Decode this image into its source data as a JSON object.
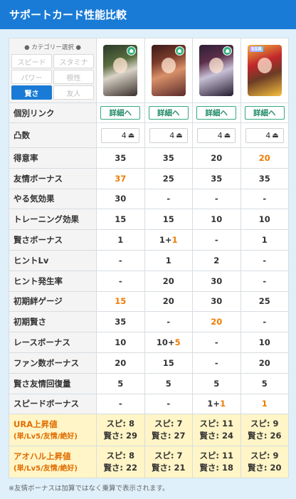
{
  "title": "サポートカード性能比較",
  "filter": {
    "title": "● カテゴリー選択 ●",
    "buttons": [
      {
        "label": "スピード",
        "active": false
      },
      {
        "label": "スタミナ",
        "active": false
      },
      {
        "label": "パワー",
        "active": false
      },
      {
        "label": "根性",
        "active": false
      },
      {
        "label": "賢さ",
        "active": true
      },
      {
        "label": "友人",
        "active": false
      }
    ]
  },
  "cards": [
    {
      "name": "card-1",
      "badge": "wis",
      "rarity": "",
      "caption": ""
    },
    {
      "name": "card-2",
      "badge": "wis",
      "rarity": "",
      "caption": ""
    },
    {
      "name": "card-3",
      "badge": "wis",
      "rarity": "",
      "caption": ""
    },
    {
      "name": "card-4",
      "badge": "",
      "rarity": "SSR",
      "caption": ""
    }
  ],
  "links": {
    "label": "個別リンク",
    "button": "詳細へ"
  },
  "limit": {
    "label": "凸数",
    "value": "4",
    "icon": "uncap-icon"
  },
  "rows": [
    {
      "label": "得意率",
      "vals": [
        [
          "35"
        ],
        [
          "35"
        ],
        [
          "20"
        ],
        [
          "20",
          "o"
        ]
      ]
    },
    {
      "label": "友情ボーナス",
      "vals": [
        [
          "37",
          "o"
        ],
        [
          "25"
        ],
        [
          "35"
        ],
        [
          "35"
        ]
      ]
    },
    {
      "label": "やる気効果",
      "vals": [
        [
          "30"
        ],
        [
          "-"
        ],
        [
          "-"
        ],
        [
          "-"
        ]
      ]
    },
    {
      "label": "トレーニング効果",
      "vals": [
        [
          "15"
        ],
        [
          "15"
        ],
        [
          "10"
        ],
        [
          "10"
        ]
      ]
    },
    {
      "label": "賢さボーナス",
      "vals": [
        [
          "1"
        ],
        [
          "1+",
          "",
          "1"
        ],
        [
          "-"
        ],
        [
          "1"
        ]
      ]
    },
    {
      "label": "ヒントLv",
      "vals": [
        [
          "-"
        ],
        [
          "1"
        ],
        [
          "2"
        ],
        [
          "-"
        ]
      ]
    },
    {
      "label": "ヒント発生率",
      "vals": [
        [
          "-"
        ],
        [
          "20"
        ],
        [
          "30"
        ],
        [
          "-"
        ]
      ]
    },
    {
      "label": "初期絆ゲージ",
      "vals": [
        [
          "15",
          "o"
        ],
        [
          "20"
        ],
        [
          "30"
        ],
        [
          "25"
        ]
      ]
    },
    {
      "label": "初期賢さ",
      "vals": [
        [
          "35"
        ],
        [
          "-"
        ],
        [
          "20",
          "o"
        ],
        [
          "-"
        ]
      ]
    },
    {
      "label": "レースボーナス",
      "vals": [
        [
          "10"
        ],
        [
          "10+",
          "",
          "5"
        ],
        [
          "-"
        ],
        [
          "10"
        ]
      ]
    },
    {
      "label": "ファン数ボーナス",
      "vals": [
        [
          "20"
        ],
        [
          "15"
        ],
        [
          "-"
        ],
        [
          "20"
        ]
      ]
    },
    {
      "label": "賢さ友情回復量",
      "vals": [
        [
          "5"
        ],
        [
          "5"
        ],
        [
          "5"
        ],
        [
          "5"
        ]
      ]
    },
    {
      "label": "スピードボーナス",
      "vals": [
        [
          "-"
        ],
        [
          "-"
        ],
        [
          "1+",
          "",
          "1"
        ],
        [
          "1",
          "o"
        ]
      ]
    }
  ],
  "ura": {
    "label": "URA上昇値",
    "sub": "(単/Lv5/友情/絶好)",
    "vals": [
      [
        "スピ: 8",
        "賢さ: 29"
      ],
      [
        "スピ: 7",
        "賢さ: 27"
      ],
      [
        "スピ: 11",
        "賢さ: 24"
      ],
      [
        "スピ: 9",
        "賢さ: 26"
      ]
    ]
  },
  "aoharu": {
    "label": "アオハル上昇値",
    "sub": "(単/Lv5/友情/絶好)",
    "vals": [
      [
        "スピ: 8",
        "賢さ: 22"
      ],
      [
        "スピ: 7",
        "賢さ: 21"
      ],
      [
        "スピ: 11",
        "賢さ: 18"
      ],
      [
        "スピ: 9",
        "賢さ: 20"
      ]
    ]
  },
  "footnote": "※友情ボーナスは加算ではなく乗算で表示されます。",
  "colors": {
    "header": "#1a7bd6",
    "panel": "#dff0fb",
    "accent_orange": "#f07b00",
    "highlight_row": "#fff5c7"
  }
}
